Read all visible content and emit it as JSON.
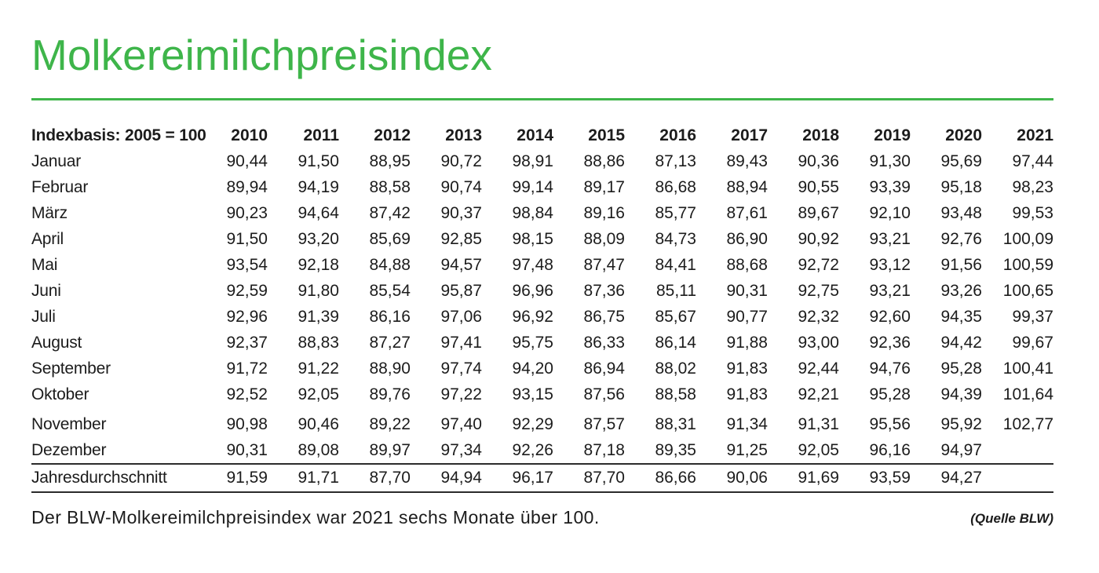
{
  "title": "Molkereimilchpreisindex",
  "colors": {
    "accent_green": "#3eb54a",
    "text": "#1c1c1c"
  },
  "chart_data": {
    "type": "table",
    "title": "Molkereimilchpreisindex",
    "header_label": "Indexbasis: 2005 = 100",
    "years": [
      "2010",
      "2011",
      "2012",
      "2013",
      "2014",
      "2015",
      "2016",
      "2017",
      "2018",
      "2019",
      "2020",
      "2021"
    ],
    "rows": [
      {
        "label": "Januar",
        "values": [
          "90,44",
          "91,50",
          "88,95",
          "90,72",
          "98,91",
          "88,86",
          "87,13",
          "89,43",
          "90,36",
          "91,30",
          "95,69",
          "97,44"
        ]
      },
      {
        "label": "Februar",
        "values": [
          "89,94",
          "94,19",
          "88,58",
          "90,74",
          "99,14",
          "89,17",
          "86,68",
          "88,94",
          "90,55",
          "93,39",
          "95,18",
          "98,23"
        ]
      },
      {
        "label": "März",
        "values": [
          "90,23",
          "94,64",
          "87,42",
          "90,37",
          "98,84",
          "89,16",
          "85,77",
          "87,61",
          "89,67",
          "92,10",
          "93,48",
          "99,53"
        ]
      },
      {
        "label": "April",
        "values": [
          "91,50",
          "93,20",
          "85,69",
          "92,85",
          "98,15",
          "88,09",
          "84,73",
          "86,90",
          "90,92",
          "93,21",
          "92,76",
          "100,09"
        ]
      },
      {
        "label": "Mai",
        "values": [
          "93,54",
          "92,18",
          "84,88",
          "94,57",
          "97,48",
          "87,47",
          "84,41",
          "88,68",
          "92,72",
          "93,12",
          "91,56",
          "100,59"
        ]
      },
      {
        "label": "Juni",
        "values": [
          "92,59",
          "91,80",
          "85,54",
          "95,87",
          "96,96",
          "87,36",
          "85,11",
          "90,31",
          "92,75",
          "93,21",
          "93,26",
          "100,65"
        ]
      },
      {
        "label": "Juli",
        "values": [
          "92,96",
          "91,39",
          "86,16",
          "97,06",
          "96,92",
          "86,75",
          "85,67",
          "90,77",
          "92,32",
          "92,60",
          "94,35",
          "99,37"
        ]
      },
      {
        "label": "August",
        "values": [
          "92,37",
          "88,83",
          "87,27",
          "97,41",
          "95,75",
          "86,33",
          "86,14",
          "91,88",
          "93,00",
          "92,36",
          "94,42",
          "99,67"
        ]
      },
      {
        "label": "September",
        "values": [
          "91,72",
          "91,22",
          "88,90",
          "97,74",
          "94,20",
          "86,94",
          "88,02",
          "91,83",
          "92,44",
          "94,76",
          "95,28",
          "100,41"
        ]
      },
      {
        "label": "Oktober",
        "values": [
          "92,52",
          "92,05",
          "89,76",
          "97,22",
          "93,15",
          "87,56",
          "88,58",
          "91,83",
          "92,21",
          "95,28",
          "94,39",
          "101,64"
        ]
      },
      {
        "label": "November",
        "values": [
          "90,98",
          "90,46",
          "89,22",
          "97,40",
          "92,29",
          "87,57",
          "88,31",
          "91,34",
          "91,31",
          "95,56",
          "95,92",
          "102,77"
        ]
      },
      {
        "label": "Dezember",
        "values": [
          "90,31",
          "89,08",
          "89,97",
          "97,34",
          "92,26",
          "87,18",
          "89,35",
          "91,25",
          "92,05",
          "96,16",
          "94,97",
          ""
        ]
      }
    ],
    "summary": {
      "label": "Jahresdurchschnitt",
      "values": [
        "91,59",
        "91,71",
        "87,70",
        "94,94",
        "96,17",
        "87,70",
        "86,66",
        "90,06",
        "91,69",
        "93,59",
        "94,27",
        ""
      ]
    }
  },
  "footer": {
    "note": "Der BLW-Molkereimilchpreisindex war 2021 sechs Monate über 100.",
    "source": "(Quelle BLW)"
  }
}
